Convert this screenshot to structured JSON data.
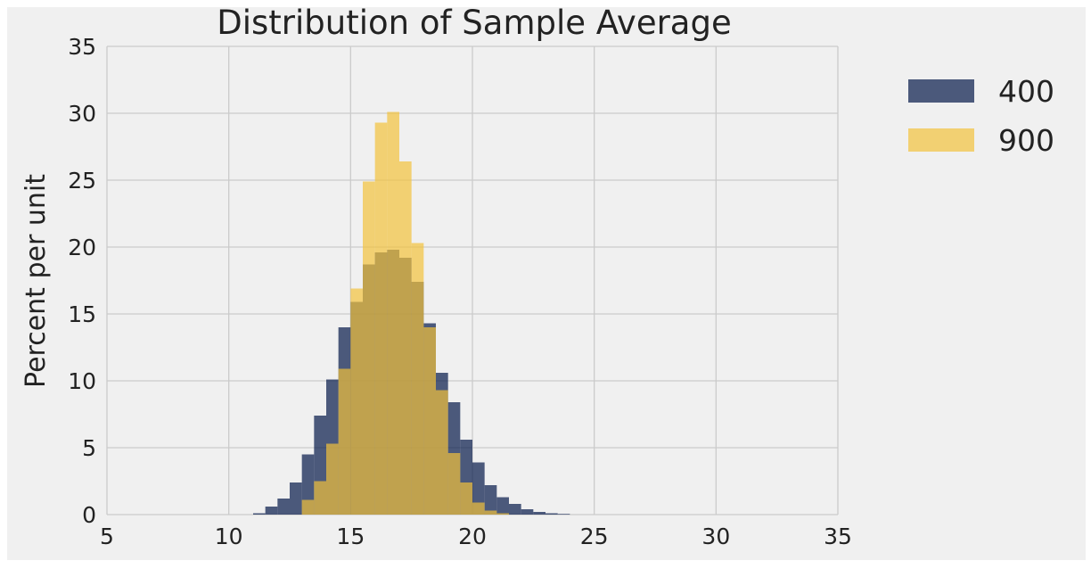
{
  "chart_data": {
    "type": "bar",
    "title": "Distribution of Sample Average",
    "xlabel": "",
    "ylabel": "Percent per unit",
    "xlim": [
      5,
      35
    ],
    "ylim": [
      0,
      35
    ],
    "xticks": [
      5,
      10,
      15,
      20,
      25,
      30,
      35
    ],
    "yticks": [
      0,
      5,
      10,
      15,
      20,
      25,
      30,
      35
    ],
    "grid": true,
    "legend_position": "right",
    "bin_width": 0.5,
    "series": [
      {
        "name": "400",
        "color": "#0b1f4d",
        "bins": [
          {
            "x": 11.0,
            "y": 0.1
          },
          {
            "x": 11.5,
            "y": 0.6
          },
          {
            "x": 12.0,
            "y": 1.2
          },
          {
            "x": 12.5,
            "y": 2.4
          },
          {
            "x": 13.0,
            "y": 4.5
          },
          {
            "x": 13.5,
            "y": 7.4
          },
          {
            "x": 14.0,
            "y": 10.1
          },
          {
            "x": 14.5,
            "y": 14.0
          },
          {
            "x": 15.0,
            "y": 15.9
          },
          {
            "x": 15.5,
            "y": 18.7
          },
          {
            "x": 16.0,
            "y": 19.6
          },
          {
            "x": 16.5,
            "y": 19.8
          },
          {
            "x": 17.0,
            "y": 19.2
          },
          {
            "x": 17.5,
            "y": 17.4
          },
          {
            "x": 18.0,
            "y": 14.3
          },
          {
            "x": 18.5,
            "y": 10.6
          },
          {
            "x": 19.0,
            "y": 8.4
          },
          {
            "x": 19.5,
            "y": 5.6
          },
          {
            "x": 20.0,
            "y": 3.9
          },
          {
            "x": 20.5,
            "y": 2.2
          },
          {
            "x": 21.0,
            "y": 1.3
          },
          {
            "x": 21.5,
            "y": 0.8
          },
          {
            "x": 22.0,
            "y": 0.4
          },
          {
            "x": 22.5,
            "y": 0.2
          },
          {
            "x": 23.0,
            "y": 0.1
          },
          {
            "x": 23.5,
            "y": 0.05
          }
        ]
      },
      {
        "name": "900",
        "color": "#f2c23c",
        "bins": [
          {
            "x": 13.0,
            "y": 1.1
          },
          {
            "x": 13.5,
            "y": 2.5
          },
          {
            "x": 14.0,
            "y": 5.3
          },
          {
            "x": 14.5,
            "y": 10.9
          },
          {
            "x": 15.0,
            "y": 16.9
          },
          {
            "x": 15.5,
            "y": 24.9
          },
          {
            "x": 16.0,
            "y": 29.3
          },
          {
            "x": 16.5,
            "y": 30.1
          },
          {
            "x": 17.0,
            "y": 26.4
          },
          {
            "x": 17.5,
            "y": 20.3
          },
          {
            "x": 18.0,
            "y": 14.0
          },
          {
            "x": 18.5,
            "y": 9.3
          },
          {
            "x": 19.0,
            "y": 4.6
          },
          {
            "x": 19.5,
            "y": 2.4
          },
          {
            "x": 20.0,
            "y": 0.9
          },
          {
            "x": 20.5,
            "y": 0.3
          },
          {
            "x": 21.0,
            "y": 0.1
          }
        ]
      }
    ]
  }
}
